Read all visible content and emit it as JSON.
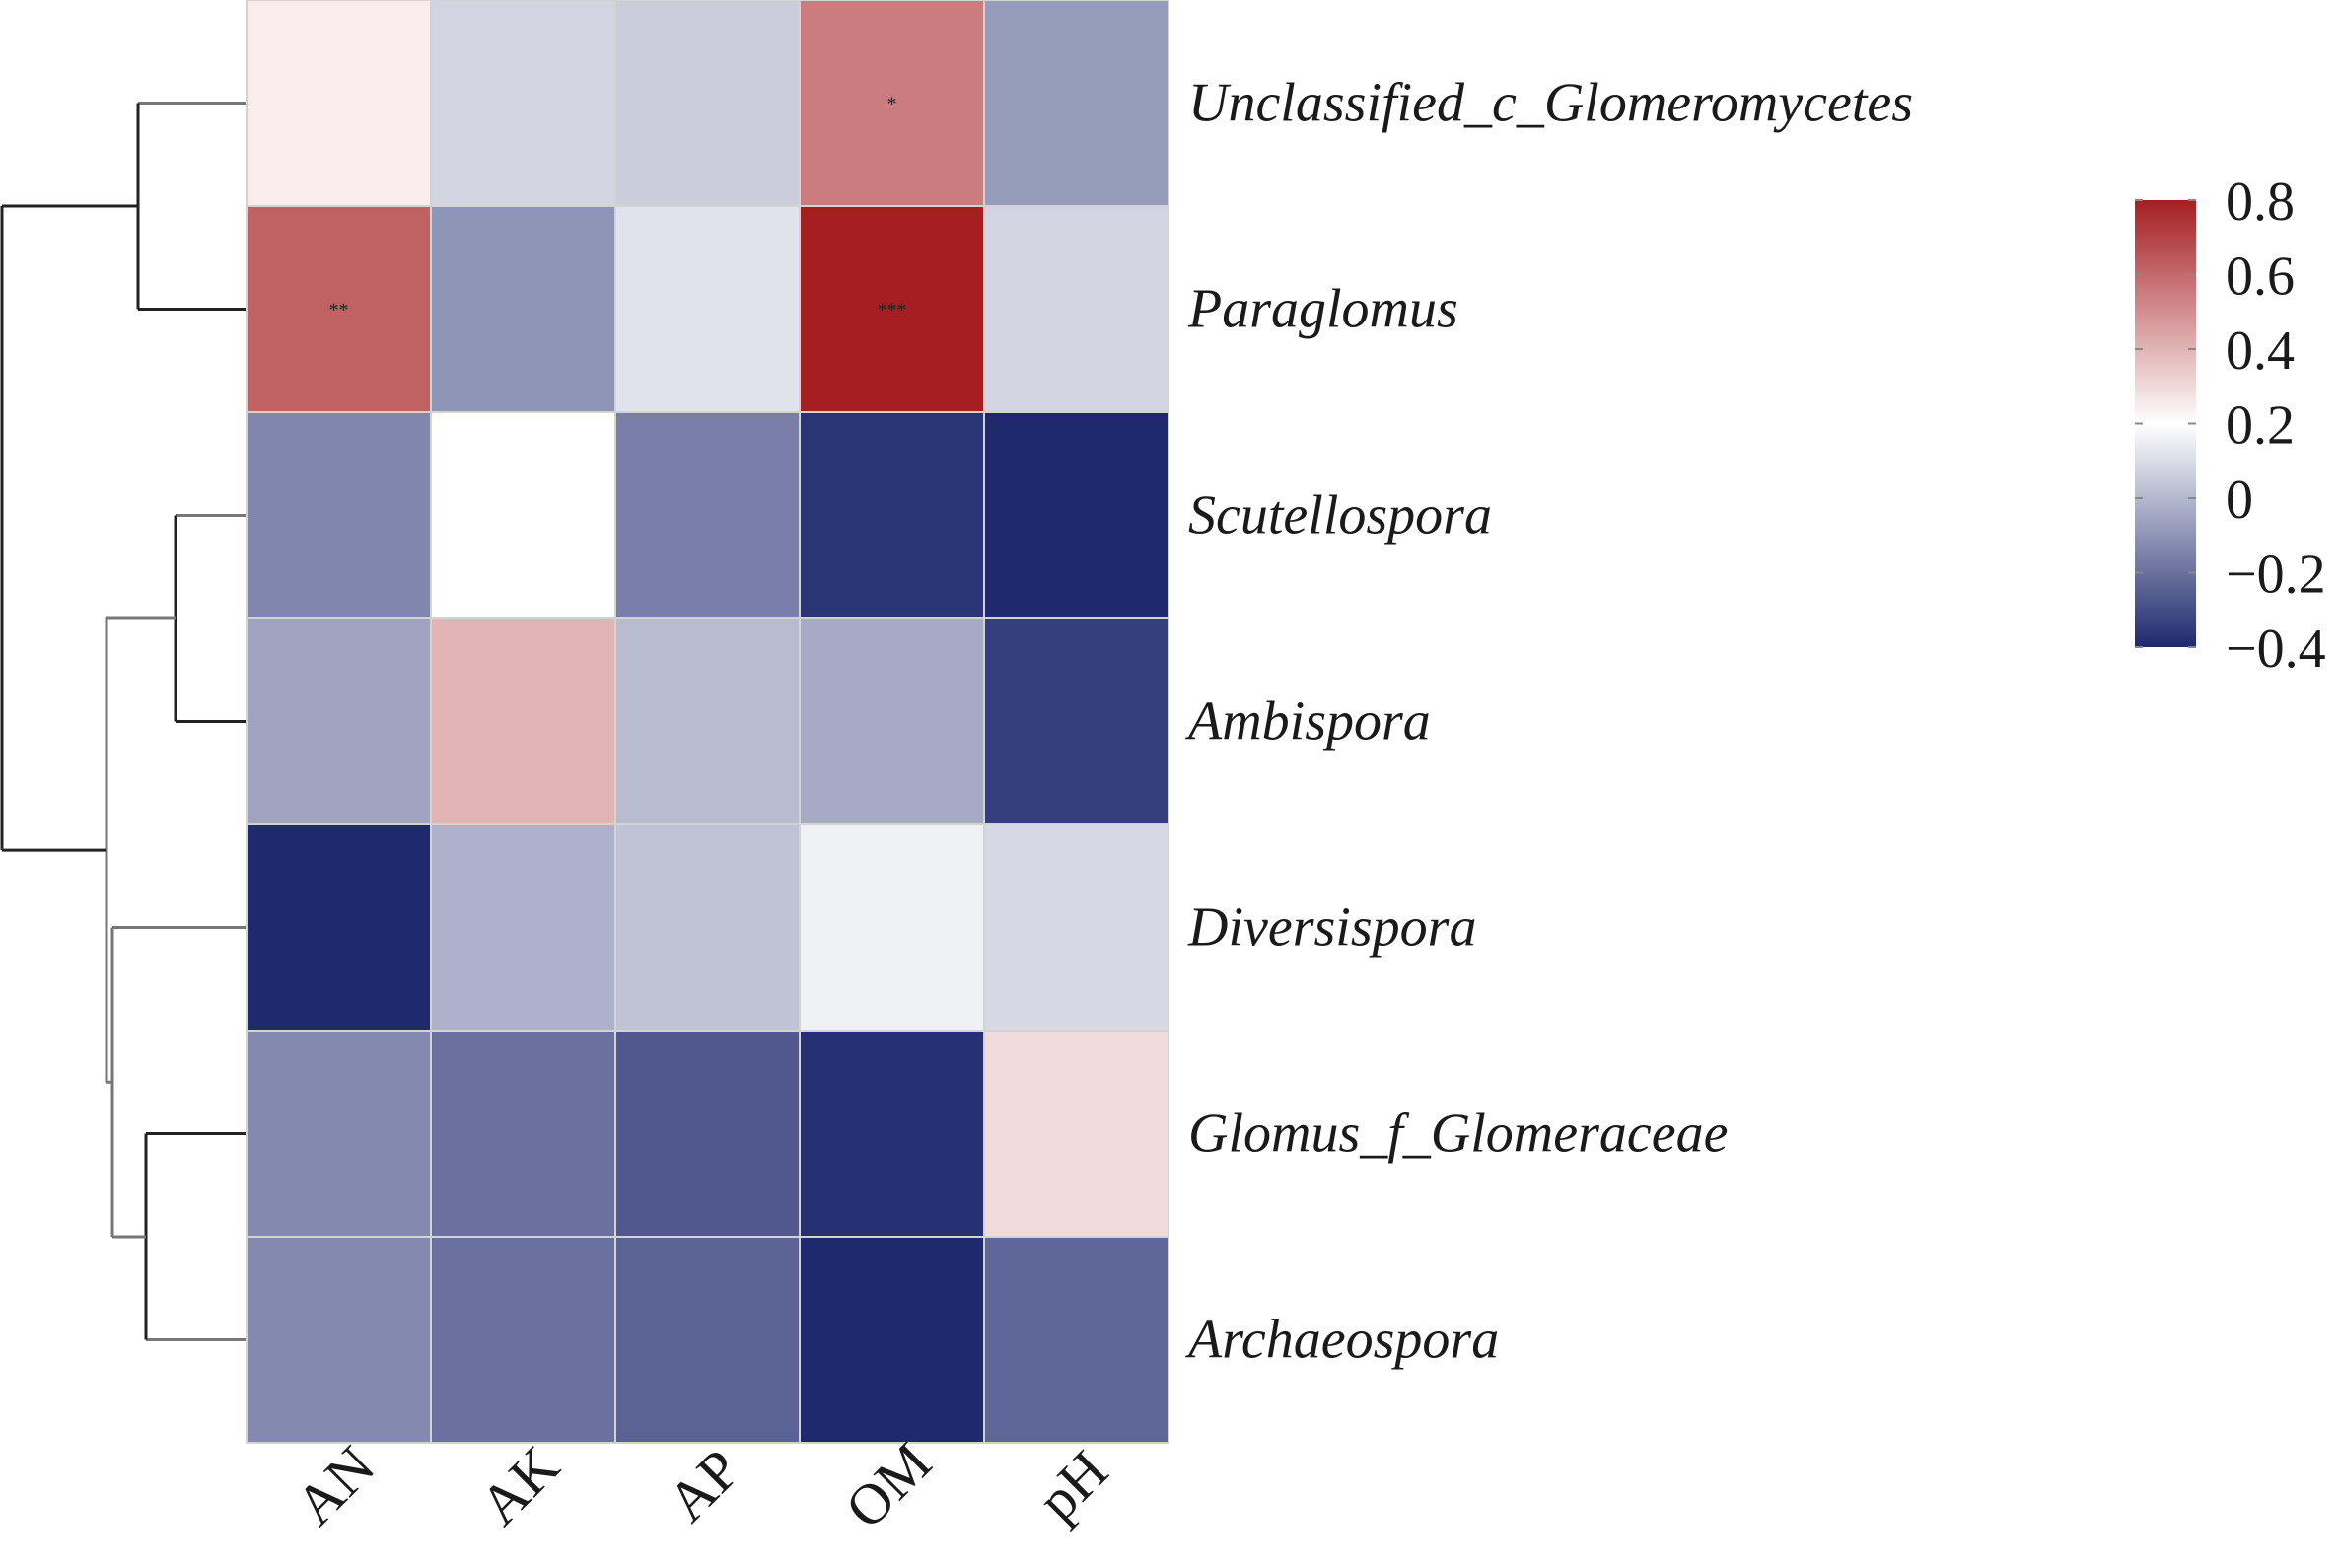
{
  "chart_data": {
    "type": "heatmap",
    "rows": [
      "Unclassified_c_Glomeromycetes",
      "Paraglomus",
      "Scutellospora",
      "Ambispora",
      "Diversispora",
      "Glomus_f_Glomeraceae",
      "Archaeospora"
    ],
    "columns": [
      "AN",
      "AK",
      "AP",
      "OM",
      "pH"
    ],
    "values": [
      [
        0.25,
        0.08,
        0.06,
        0.55,
        -0.08
      ],
      [
        0.62,
        -0.1,
        0.12,
        0.8,
        0.08
      ],
      [
        -0.14,
        0.2,
        -0.16,
        -0.37,
        -0.43
      ],
      [
        -0.06,
        0.4,
        0.01,
        -0.04,
        -0.34
      ],
      [
        -0.43,
        -0.02,
        0.03,
        0.16,
        0.09
      ],
      [
        -0.13,
        -0.2,
        -0.27,
        -0.38,
        0.3
      ],
      [
        -0.13,
        -0.2,
        -0.24,
        -0.45,
        -0.23
      ]
    ],
    "significance": [
      [
        "",
        "",
        "",
        "*",
        ""
      ],
      [
        "**",
        "",
        "",
        "***",
        ""
      ],
      [
        "",
        "",
        "",
        "",
        ""
      ],
      [
        "",
        "",
        "",
        "",
        ""
      ],
      [
        "",
        "",
        "",
        "",
        ""
      ],
      [
        "",
        "",
        "",
        "",
        ""
      ],
      [
        "",
        "",
        "",
        "",
        ""
      ]
    ],
    "colorbar": {
      "min": -0.4,
      "max": 0.8,
      "ticks": [
        "0.8",
        "0.6",
        "0.4",
        "0.2",
        "0",
        "−0.2",
        "−0.4"
      ],
      "tick_values": [
        0.8,
        0.6,
        0.4,
        0.2,
        0,
        -0.2,
        -0.4
      ],
      "colors": {
        "low": "#1f2a6e",
        "mid": "#ffffff",
        "high": "#a51e22"
      },
      "midpoint": 0.2
    },
    "dendrogram": "row clustering: ((Unclassified_c_Glomeromycetes, Paraglomus), ((Scutellospora, Ambispora), (Diversispora, (Glomus_f_Glomeraceae, Archaeospora))))",
    "legend_position": "right"
  }
}
